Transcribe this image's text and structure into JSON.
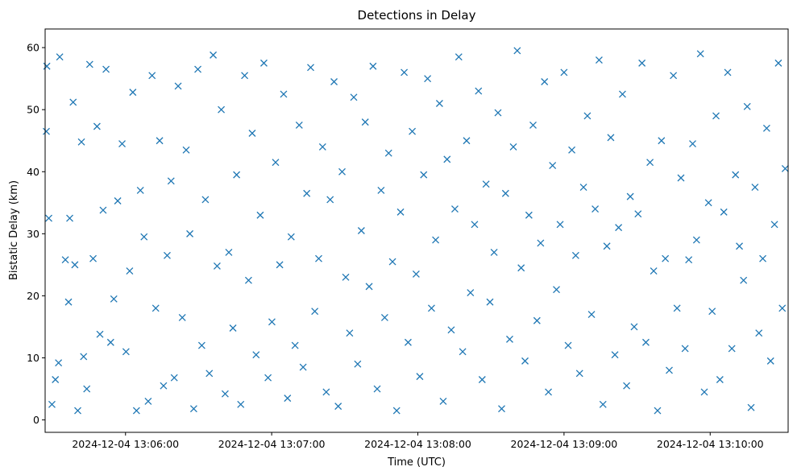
{
  "chart_data": {
    "type": "scatter",
    "title": "Detections in Delay",
    "xlabel": "Time (UTC)",
    "ylabel": "Bistatic Delay (km)",
    "ylim": [
      -2,
      63
    ],
    "xlim": [
      "2024-12-04 13:05:27",
      "2024-12-04 13:10:32"
    ],
    "yticks": [
      0,
      10,
      20,
      30,
      40,
      50,
      60
    ],
    "xticks": [
      "2024-12-04 13:06:00",
      "2024-12-04 13:07:00",
      "2024-12-04 13:08:00",
      "2024-12-04 13:09:00",
      "2024-12-04 13:10:00"
    ],
    "marker": "x",
    "color": "#1f77b4",
    "grid": false,
    "legend": "none",
    "x_start": "2024-12-04 13:05:27",
    "points_per_second": 3,
    "series": [
      {
        "x_seconds": [
          0.5,
          0.7,
          1.5,
          2.8,
          4.2,
          5.5,
          6.0,
          8.3,
          9.6,
          10.1,
          11.5,
          12.2,
          13.4,
          14.9,
          15.8,
          17.1,
          18.3,
          19.7,
          21.3,
          22.5,
          23.8,
          25.0,
          26.9,
          28.2,
          29.8,
          31.6,
          33.2,
          34.7,
          36.0,
          37.5,
          39.1,
          40.6,
          42.3,
          43.9,
          45.4,
          47.0,
          48.6,
          50.1,
          51.7,
          53.0,
          54.6,
          56.3,
          57.9,
          59.4,
          61.0,
          62.7,
          64.3,
          65.8,
          67.4,
          69.0,
          70.6,
          72.3,
          73.9,
          75.4,
          77.1,
          78.6,
          80.3,
          81.9,
          83.5,
          85.0,
          86.6,
          88.3,
          89.8,
          91.5,
          93.1,
          94.6,
          96.3,
          97.9,
          99.5,
          101.0,
          102.6,
          104.3,
          105.9,
          107.4,
          109.0,
          110.7,
          112.3,
          113.9,
          115.4,
          117.0,
          118.6,
          120.3,
          121.9,
          123.4,
          125.0,
          126.7,
          128.3,
          129.8,
          131.4,
          133.0,
          134.6,
          136.3,
          137.9,
          139.4,
          141.0,
          142.6,
          144.3,
          145.9,
          147.4,
          149.0,
          150.7,
          152.3,
          153.8,
          155.4,
          157.0,
          158.6,
          160.3,
          161.9,
          163.4,
          165.0,
          166.7,
          168.2,
          169.8,
          171.4,
          173.0,
          174.6,
          176.3,
          177.9,
          179.4,
          181.0,
          182.6,
          184.3,
          185.9,
          187.4,
          189.0,
          190.7,
          192.2,
          193.8,
          195.4,
          197.0,
          198.6,
          200.3,
          201.9,
          203.4,
          205.0,
          206.6,
          208.3,
          209.9,
          211.4,
          213.0,
          214.7,
          216.2,
          217.8,
          219.4,
          221.0,
          222.6,
          224.3,
          225.8,
          227.4,
          229.0,
          230.6,
          232.2,
          233.9,
          235.4,
          237.0,
          238.7,
          240.2,
          241.8,
          243.4,
          245.0,
          246.6,
          248.3,
          249.8,
          251.4,
          253.0,
          254.6,
          256.2,
          257.9,
          259.4,
          261.0,
          262.7,
          264.2,
          265.8,
          267.4,
          269.0,
          270.6,
          272.3,
          273.8,
          275.4,
          277.0,
          278.6,
          280.2,
          281.9,
          283.4,
          285.0,
          286.7,
          288.2,
          289.8,
          291.4,
          293.0,
          294.6,
          296.2,
          297.8,
          299.4,
          301.0,
          302.6,
          303.8
        ],
        "y": [
          46.5,
          57.0,
          32.5,
          2.5,
          6.5,
          9.2,
          58.5,
          25.8,
          19.0,
          32.5,
          51.2,
          25.0,
          1.5,
          44.8,
          10.2,
          5.0,
          57.3,
          26.0,
          47.3,
          13.8,
          33.8,
          56.5,
          12.5,
          19.5,
          35.3,
          44.5,
          11.0,
          24.0,
          52.8,
          1.5,
          37.0,
          29.5,
          3.0,
          55.5,
          18.0,
          45.0,
          5.5,
          26.5,
          38.5,
          6.8,
          53.8,
          16.5,
          43.5,
          30.0,
          1.8,
          56.5,
          12.0,
          35.5,
          7.5,
          58.8,
          24.8,
          50.0,
          4.2,
          27.0,
          14.8,
          39.5,
          2.5,
          55.5,
          22.5,
          46.2,
          10.5,
          33.0,
          57.5,
          6.8,
          15.8,
          41.5,
          25.0,
          52.5,
          3.5,
          29.5,
          12.0,
          47.5,
          8.5,
          36.5,
          56.8,
          17.5,
          26.0,
          44.0,
          4.5,
          35.5,
          54.5,
          2.2,
          40.0,
          23.0,
          14.0,
          52.0,
          9.0,
          30.5,
          48.0,
          21.5,
          57.0,
          5.0,
          37.0,
          16.5,
          43.0,
          25.5,
          1.5,
          33.5,
          56.0,
          12.5,
          46.5,
          23.5,
          7.0,
          39.5,
          55.0,
          18.0,
          29.0,
          51.0,
          3.0,
          42.0,
          14.5,
          34.0,
          58.5,
          11.0,
          45.0,
          20.5,
          31.5,
          53.0,
          6.5,
          38.0,
          19.0,
          27.0,
          49.5,
          1.8,
          36.5,
          13.0,
          44.0,
          59.5,
          24.5,
          9.5,
          33.0,
          47.5,
          16.0,
          28.5,
          54.5,
          4.5,
          41.0,
          21.0,
          31.5,
          56.0,
          12.0,
          43.5,
          26.5,
          7.5,
          37.5,
          49.0,
          17.0,
          34.0,
          58.0,
          2.5,
          28.0,
          45.5,
          10.5,
          31.0,
          52.5,
          5.5,
          36.0,
          15.0,
          33.2,
          57.5,
          12.5,
          41.5,
          24.0,
          1.5,
          45.0,
          26.0,
          8.0,
          55.5,
          18.0,
          39.0,
          11.5,
          25.8,
          44.5,
          29.0,
          59.0,
          4.5,
          35.0,
          17.5,
          49.0,
          6.5,
          33.5,
          56.0,
          11.5,
          39.5,
          28.0,
          22.5,
          50.5,
          2.0,
          37.5,
          14.0,
          26.0,
          47.0,
          9.5,
          31.5,
          57.5,
          18.0,
          40.5
        ]
      }
    ]
  }
}
